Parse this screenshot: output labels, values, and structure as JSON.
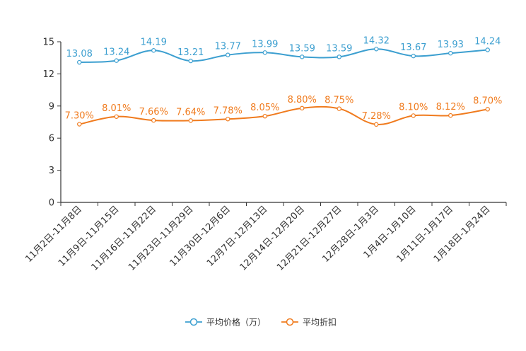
{
  "chart_data": {
    "type": "line",
    "categories": [
      "11月2日-11月8日",
      "11月9日-11月15日",
      "11月16日-11月22日",
      "11月23日-11月29日",
      "11月30日-12月6日",
      "12月7日-12月13日",
      "12月14日-12月20日",
      "12月21日-12月27日",
      "12月28日-1月3日",
      "1月4日-1月10日",
      "1月11日-1月17日",
      "1月18日-1月24日"
    ],
    "ylim": [
      0,
      15
    ],
    "yticks": [
      0,
      3,
      6,
      9,
      12,
      15
    ],
    "ytick_labels": [
      "0",
      "3",
      "6",
      "9",
      "12",
      "15"
    ],
    "series": [
      {
        "name": "平均价格（万）",
        "color": "#3c9fd0",
        "values": [
          13.08,
          13.24,
          14.19,
          13.21,
          13.77,
          13.99,
          13.59,
          13.59,
          14.32,
          13.67,
          13.93,
          14.24
        ],
        "labels": [
          "13.08",
          "13.24",
          "14.19",
          "13.21",
          "13.77",
          "13.99",
          "13.59",
          "13.59",
          "14.32",
          "13.67",
          "13.93",
          "14.24"
        ]
      },
      {
        "name": "平均折扣",
        "color": "#f07b1e",
        "values": [
          7.3,
          8.01,
          7.66,
          7.64,
          7.78,
          8.05,
          8.8,
          8.75,
          7.28,
          8.1,
          8.12,
          8.7
        ],
        "labels": [
          "7.30%",
          "8.01%",
          "7.66%",
          "7.64%",
          "7.78%",
          "8.05%",
          "8.80%",
          "8.75%",
          "7.28%",
          "8.10%",
          "8.12%",
          "8.70%"
        ]
      }
    ],
    "legend": [
      "平均价格（万）",
      "平均折扣"
    ],
    "legend_position": "bottom-center",
    "grid": false
  }
}
